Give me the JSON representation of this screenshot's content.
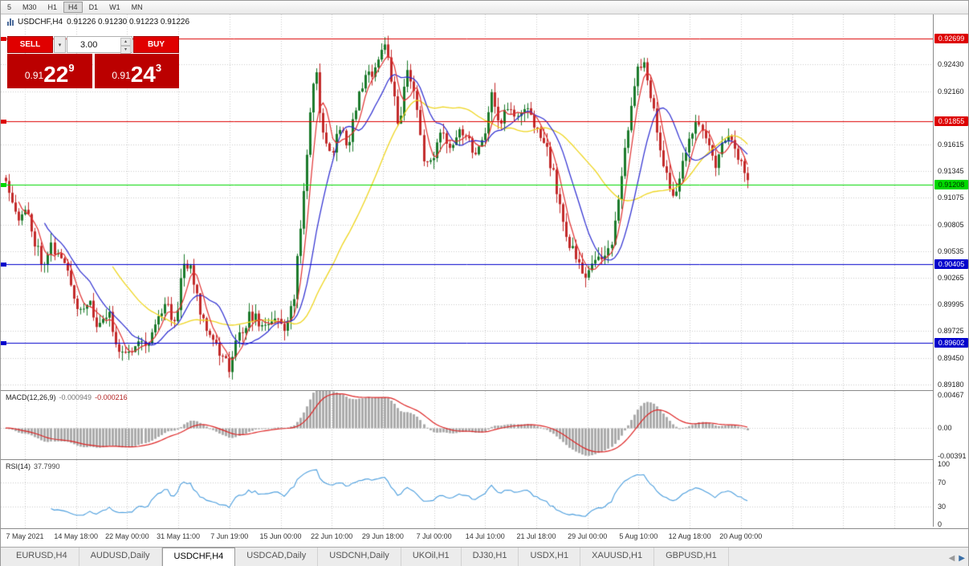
{
  "toolbar": {
    "timeframes": [
      {
        "label": "5",
        "active": false
      },
      {
        "label": "M30",
        "active": false
      },
      {
        "label": "H1",
        "active": false
      },
      {
        "label": "H4",
        "active": true
      },
      {
        "label": "D1",
        "active": false
      },
      {
        "label": "W1",
        "active": false
      },
      {
        "label": "MN",
        "active": false
      }
    ]
  },
  "chart_header": {
    "symbol": "USDCHF,H4",
    "ohlc": "0.91226 0.91230 0.91223 0.91226"
  },
  "trade_panel": {
    "sell_label": "SELL",
    "buy_label": "BUY",
    "volume": "3.00",
    "sell_price": {
      "prefix": "0.91",
      "big": "22",
      "sup": "9"
    },
    "buy_price": {
      "prefix": "0.91",
      "big": "24",
      "sup": "3"
    }
  },
  "macd_panel": {
    "name": "MACD(12,26,9)",
    "value_main": "-0.000949",
    "value_signal": "-0.000216",
    "axis": [
      {
        "v": 0.00467,
        "label": "0.00467"
      },
      {
        "v": 0,
        "label": "0.00"
      },
      {
        "v": -0.00391,
        "label": "-0.00391"
      }
    ]
  },
  "rsi_panel": {
    "name": "RSI(14)",
    "value": "37.7990",
    "axis": [
      {
        "v": 100,
        "label": "100"
      },
      {
        "v": 70,
        "label": "70"
      },
      {
        "v": 30,
        "label": "30"
      },
      {
        "v": 0,
        "label": "0"
      }
    ]
  },
  "time_axis": {
    "ticks": [
      "7 May 2021",
      "14 May 18:00",
      "22 May 00:00",
      "31 May 11:00",
      "7 Jun 19:00",
      "15 Jun 00:00",
      "22 Jun 10:00",
      "29 Jun 18:00",
      "7 Jul 00:00",
      "14 Jul 10:00",
      "21 Jul 18:00",
      "29 Jul 00:00",
      "5 Aug 10:00",
      "12 Aug 18:00",
      "20 Aug 00:00"
    ]
  },
  "tab_bar": {
    "tabs": [
      {
        "label": "EURUSD,H4",
        "active": false
      },
      {
        "label": "AUDUSD,Daily",
        "active": false
      },
      {
        "label": "USDCHF,H4",
        "active": true
      },
      {
        "label": "USDCAD,Daily",
        "active": false
      },
      {
        "label": "USDCNH,Daily",
        "active": false
      },
      {
        "label": "UKOil,H1",
        "active": false
      },
      {
        "label": "DJ30,H1",
        "active": false
      },
      {
        "label": "USDX,H1",
        "active": false
      },
      {
        "label": "XAUUSD,H1",
        "active": false
      },
      {
        "label": "GBPUSD,H1",
        "active": false
      }
    ]
  },
  "chart_data": {
    "type": "candlestick",
    "symbol": "USDCHF",
    "timeframe": "H4",
    "price_min": 0.8912,
    "price_max": 0.9294,
    "grid": [
      {
        "p": 0.9243,
        "label": "0.92430"
      },
      {
        "p": 0.9216,
        "label": "0.92160"
      },
      {
        "p": 0.91615,
        "label": "0.91615"
      },
      {
        "p": 0.91345,
        "label": "0.91345"
      },
      {
        "p": 0.91075,
        "label": "0.91075"
      },
      {
        "p": 0.90805,
        "label": "0.90805"
      },
      {
        "p": 0.90535,
        "label": "0.90535"
      },
      {
        "p": 0.90265,
        "label": "0.90265"
      },
      {
        "p": 0.89995,
        "label": "0.89995"
      },
      {
        "p": 0.89725,
        "label": "0.89725"
      },
      {
        "p": 0.8945,
        "label": "0.89450"
      },
      {
        "p": 0.8918,
        "label": "0.89180"
      }
    ],
    "levels": [
      {
        "price": 0.92699,
        "label": "0.92699",
        "color": "#dd0000",
        "text": "#ffffff"
      },
      {
        "price": 0.91855,
        "label": "0.91855",
        "color": "#dd0000",
        "text": "#ffffff"
      },
      {
        "price": 0.91208,
        "label": "0.91208",
        "color": "#00d800",
        "text": "#003300"
      },
      {
        "price": 0.90405,
        "label": "0.90405",
        "color": "#0000cc",
        "text": "#ffffff"
      },
      {
        "price": 0.89602,
        "label": "0.89602",
        "color": "#0000cc",
        "text": "#ffffff"
      }
    ],
    "candle_count": 230,
    "path": [
      [
        0.0,
        0.9128
      ],
      [
        0.008,
        0.911
      ],
      [
        0.018,
        0.9085
      ],
      [
        0.028,
        0.9095
      ],
      [
        0.04,
        0.9062
      ],
      [
        0.05,
        0.9042
      ],
      [
        0.06,
        0.906
      ],
      [
        0.072,
        0.9048
      ],
      [
        0.085,
        0.9028
      ],
      [
        0.098,
        0.8992
      ],
      [
        0.11,
        0.9004
      ],
      [
        0.124,
        0.8975
      ],
      [
        0.138,
        0.899
      ],
      [
        0.152,
        0.8955
      ],
      [
        0.165,
        0.8946
      ],
      [
        0.178,
        0.8968
      ],
      [
        0.19,
        0.8956
      ],
      [
        0.203,
        0.8986
      ],
      [
        0.216,
        0.9
      ],
      [
        0.228,
        0.898
      ],
      [
        0.24,
        0.9046
      ],
      [
        0.252,
        0.9028
      ],
      [
        0.264,
        0.8988
      ],
      [
        0.277,
        0.897
      ],
      [
        0.29,
        0.8946
      ],
      [
        0.302,
        0.8936
      ],
      [
        0.315,
        0.897
      ],
      [
        0.33,
        0.899
      ],
      [
        0.345,
        0.8976
      ],
      [
        0.36,
        0.8986
      ],
      [
        0.375,
        0.8974
      ],
      [
        0.388,
        0.9005
      ],
      [
        0.398,
        0.908
      ],
      [
        0.408,
        0.9175
      ],
      [
        0.418,
        0.924
      ],
      [
        0.428,
        0.9168
      ],
      [
        0.438,
        0.9152
      ],
      [
        0.45,
        0.9178
      ],
      [
        0.462,
        0.9162
      ],
      [
        0.474,
        0.921
      ],
      [
        0.486,
        0.9228
      ],
      [
        0.498,
        0.9242
      ],
      [
        0.51,
        0.9268
      ],
      [
        0.52,
        0.923
      ],
      [
        0.53,
        0.9168
      ],
      [
        0.54,
        0.924
      ],
      [
        0.55,
        0.922
      ],
      [
        0.562,
        0.915
      ],
      [
        0.574,
        0.914
      ],
      [
        0.586,
        0.9172
      ],
      [
        0.598,
        0.916
      ],
      [
        0.61,
        0.918
      ],
      [
        0.622,
        0.917
      ],
      [
        0.634,
        0.9152
      ],
      [
        0.646,
        0.9178
      ],
      [
        0.656,
        0.9215
      ],
      [
        0.666,
        0.9182
      ],
      [
        0.676,
        0.92
      ],
      [
        0.688,
        0.9186
      ],
      [
        0.7,
        0.9198
      ],
      [
        0.712,
        0.9185
      ],
      [
        0.724,
        0.9165
      ],
      [
        0.736,
        0.9138
      ],
      [
        0.748,
        0.9095
      ],
      [
        0.76,
        0.906
      ],
      [
        0.772,
        0.9038
      ],
      [
        0.782,
        0.9026
      ],
      [
        0.792,
        0.904
      ],
      [
        0.8,
        0.9055
      ],
      [
        0.81,
        0.9042
      ],
      [
        0.82,
        0.9078
      ],
      [
        0.83,
        0.913
      ],
      [
        0.842,
        0.9195
      ],
      [
        0.852,
        0.9238
      ],
      [
        0.862,
        0.9242
      ],
      [
        0.872,
        0.92
      ],
      [
        0.882,
        0.916
      ],
      [
        0.892,
        0.9125
      ],
      [
        0.902,
        0.9105
      ],
      [
        0.912,
        0.915
      ],
      [
        0.922,
        0.9165
      ],
      [
        0.932,
        0.9182
      ],
      [
        0.945,
        0.9168
      ],
      [
        0.958,
        0.914
      ],
      [
        0.97,
        0.9172
      ],
      [
        0.985,
        0.9152
      ],
      [
        1.0,
        0.9122
      ]
    ],
    "ma_periods": {
      "fast": 5,
      "mid": 13,
      "slow": 34
    },
    "macd": {
      "fast": 12,
      "slow": 26,
      "signal": 9,
      "scale_max": 0.0052,
      "scale_min": -0.0044
    },
    "rsi": {
      "period": 14
    },
    "colors": {
      "up": "#1b7a2b",
      "down": "#c22a2a",
      "ma_fast": "#e03030",
      "ma_mid": "#2a2ad0",
      "ma_slow": "#eed51e",
      "macd_hist": "#ababab",
      "macd_signal": "#dd2222",
      "rsi": "#4a9ddd",
      "grid": "#c9c9c9"
    }
  }
}
